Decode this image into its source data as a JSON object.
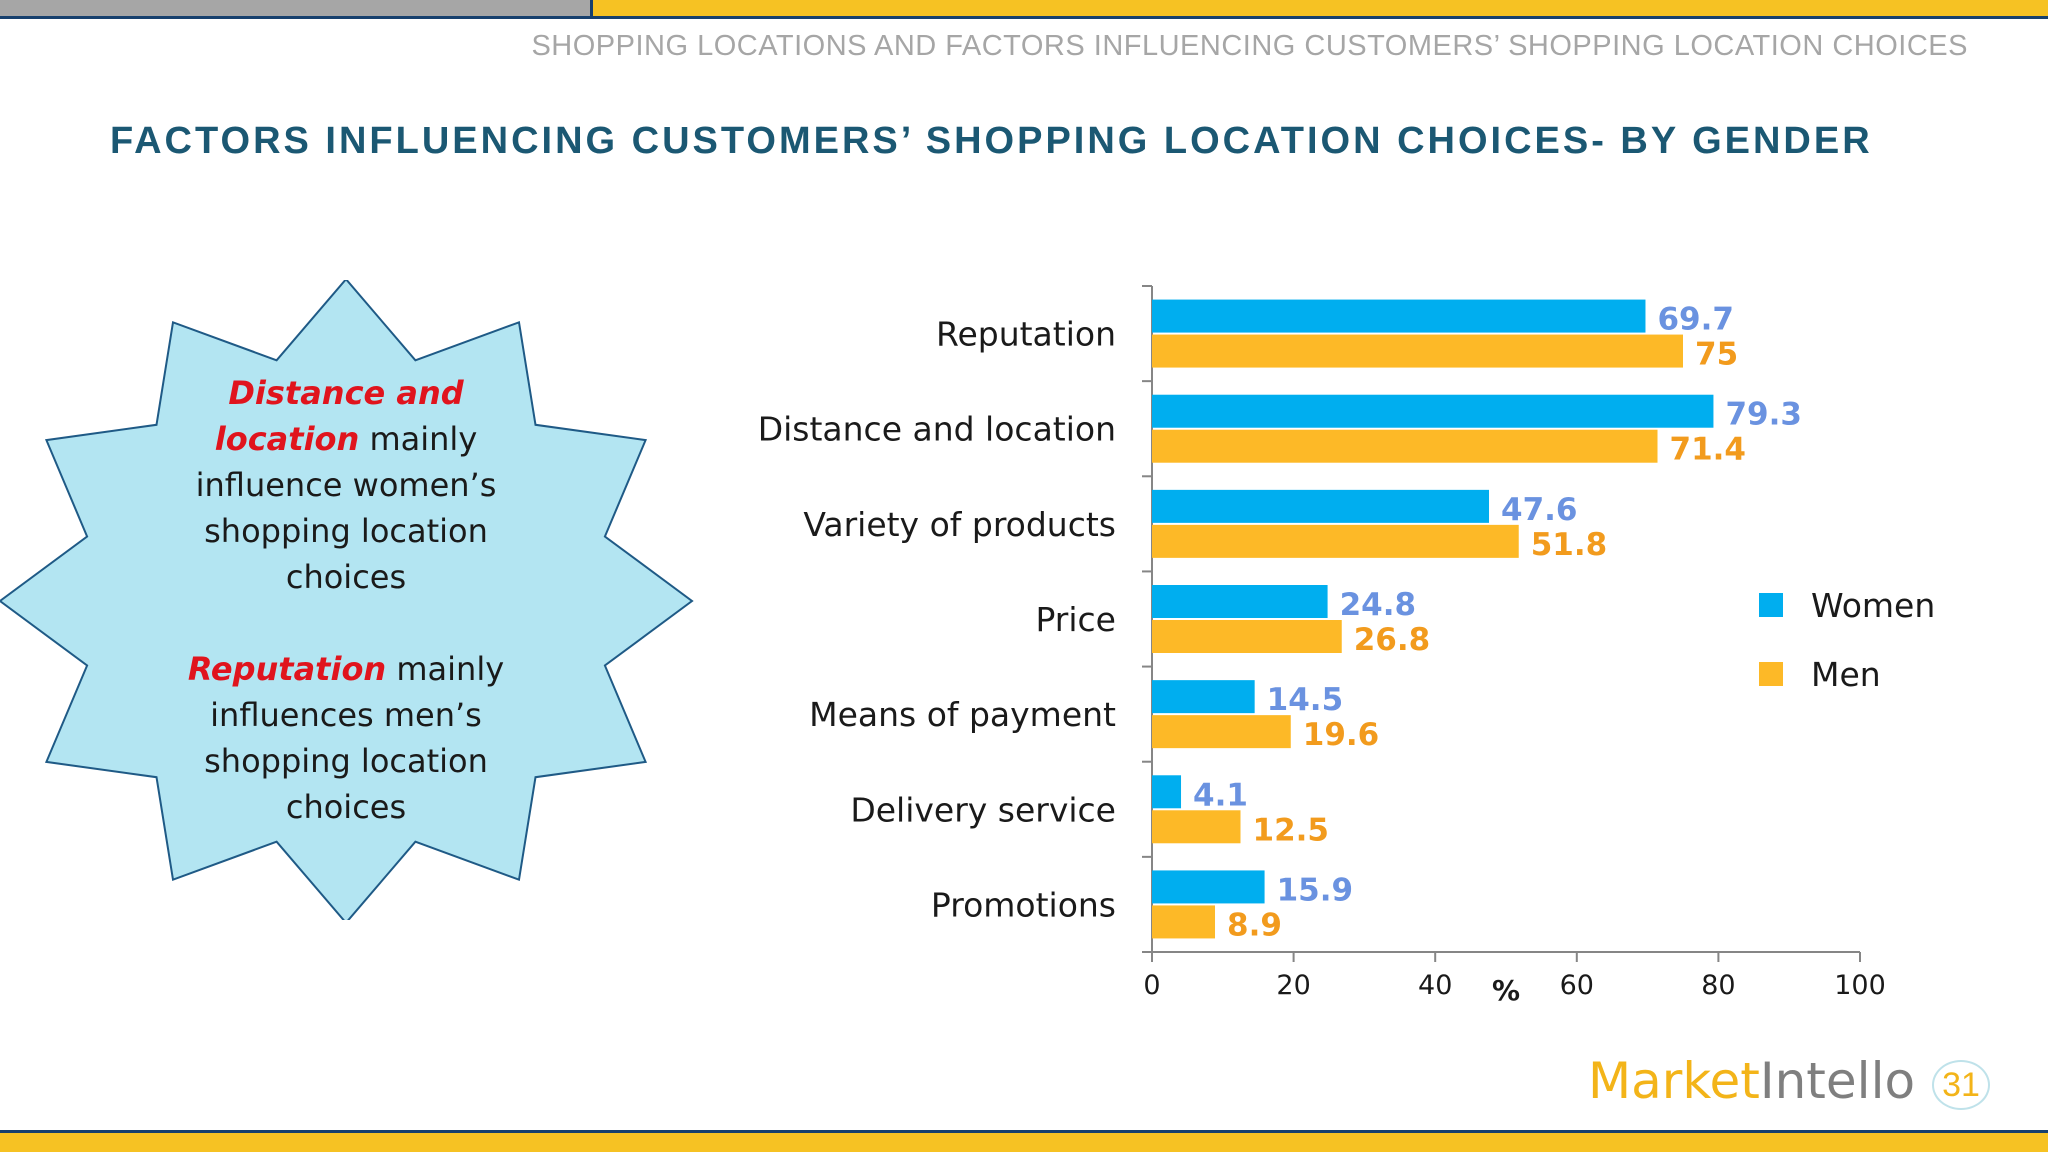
{
  "header": {
    "section_title": "SHOPPING LOCATIONS AND FACTORS INFLUENCING CUSTOMERS’ SHOPPING LOCATION CHOICES",
    "page_title": "FACTORS INFLUENCING CUSTOMERS’ SHOPPING LOCATION CHOICES- BY GENDER"
  },
  "callout": {
    "para1_emph": "Distance and location",
    "para1_text": " mainly influence women’s shopping location choices",
    "para2_emph": "Reputation",
    "para2_text": " mainly influences men’s shopping location choices",
    "fill_color": "#b3e5f2",
    "stroke_color": "#1f5a86",
    "emph_color": "#e0141d"
  },
  "chart_data": {
    "type": "bar",
    "orientation": "horizontal",
    "categories": [
      "Reputation",
      "Distance and location",
      "Variety of products",
      "Price",
      "Means of payment",
      "Delivery service",
      "Promotions"
    ],
    "series": [
      {
        "name": "Women",
        "values": [
          69.7,
          79.3,
          47.6,
          24.8,
          14.5,
          4.1,
          15.9
        ],
        "color": "#00aeef",
        "label_color": "#6a92e0"
      },
      {
        "name": "Men",
        "values": [
          75,
          71.4,
          51.8,
          26.8,
          19.6,
          12.5,
          8.9
        ],
        "color": "#fdb927",
        "label_color": "#f29b1d"
      }
    ],
    "xlabel": "%",
    "xlim": [
      0,
      100
    ],
    "xticks": [
      0,
      20,
      40,
      60,
      80,
      100
    ],
    "legend_position": "right",
    "grid": false
  },
  "footer": {
    "logo_market": "Market",
    "logo_intello": "Intello",
    "page_number": "31"
  }
}
